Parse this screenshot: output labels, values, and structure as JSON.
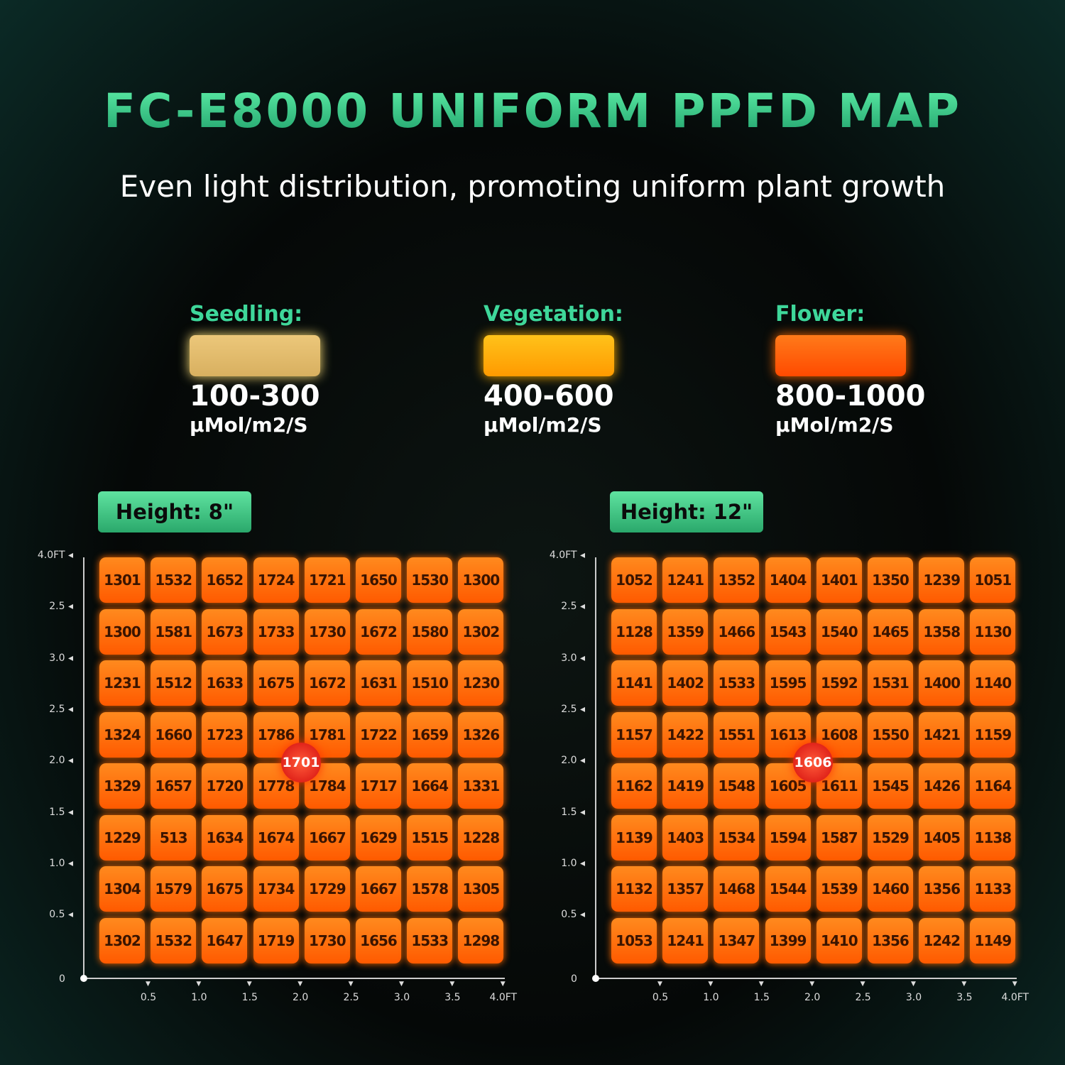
{
  "header": {
    "title": "FC-E8000 UNIFORM PPFD MAP",
    "subtitle": "Even light distribution, promoting uniform plant growth"
  },
  "legend": [
    {
      "label": "Seedling:",
      "range": "100-300",
      "unit": "µMol/m2/S"
    },
    {
      "label": "Vegetation:",
      "range": "400-600",
      "unit": "µMol/m2/S"
    },
    {
      "label": "Flower:",
      "range": "800-1000",
      "unit": "µMol/m2/S"
    }
  ],
  "maps": [
    {
      "height": "Height: 8\"",
      "center": "1701",
      "origin": "0",
      "y_axis": [
        "4.0FT",
        "2.5",
        "3.0",
        "2.5",
        "2.0",
        "1.5",
        "1.0",
        "0.5"
      ],
      "x_axis": [
        "0.5",
        "1.0",
        "1.5",
        "2.0",
        "2.5",
        "3.0",
        "3.5",
        "4.0FT"
      ],
      "rows": [
        [
          "1301",
          "1532",
          "1652",
          "1724",
          "1721",
          "1650",
          "1530",
          "1300"
        ],
        [
          "1300",
          "1581",
          "1673",
          "1733",
          "1730",
          "1672",
          "1580",
          "1302"
        ],
        [
          "1231",
          "1512",
          "1633",
          "1675",
          "1672",
          "1631",
          "1510",
          "1230"
        ],
        [
          "1324",
          "1660",
          "1723",
          "1786",
          "1781",
          "1722",
          "1659",
          "1326"
        ],
        [
          "1329",
          "1657",
          "1720",
          "1778",
          "1784",
          "1717",
          "1664",
          "1331"
        ],
        [
          "1229",
          "513",
          "1634",
          "1674",
          "1667",
          "1629",
          "1515",
          "1228"
        ],
        [
          "1304",
          "1579",
          "1675",
          "1734",
          "1729",
          "1667",
          "1578",
          "1305"
        ],
        [
          "1302",
          "1532",
          "1647",
          "1719",
          "1730",
          "1656",
          "1533",
          "1298"
        ]
      ]
    },
    {
      "height": "Height: 12\"",
      "center": "1606",
      "origin": "0",
      "y_axis": [
        "4.0FT",
        "2.5",
        "3.0",
        "2.5",
        "2.0",
        "1.5",
        "1.0",
        "0.5"
      ],
      "x_axis": [
        "0.5",
        "1.0",
        "1.5",
        "2.0",
        "2.5",
        "3.0",
        "3.5",
        "4.0FT"
      ],
      "rows": [
        [
          "1052",
          "1241",
          "1352",
          "1404",
          "1401",
          "1350",
          "1239",
          "1051"
        ],
        [
          "1128",
          "1359",
          "1466",
          "1543",
          "1540",
          "1465",
          "1358",
          "1130"
        ],
        [
          "1141",
          "1402",
          "1533",
          "1595",
          "1592",
          "1531",
          "1400",
          "1140"
        ],
        [
          "1157",
          "1422",
          "1551",
          "1613",
          "1608",
          "1550",
          "1421",
          "1159"
        ],
        [
          "1162",
          "1419",
          "1548",
          "1605",
          "1611",
          "1545",
          "1426",
          "1164"
        ],
        [
          "1139",
          "1403",
          "1534",
          "1594",
          "1587",
          "1529",
          "1405",
          "1138"
        ],
        [
          "1132",
          "1357",
          "1468",
          "1544",
          "1539",
          "1460",
          "1356",
          "1133"
        ],
        [
          "1053",
          "1241",
          "1347",
          "1399",
          "1410",
          "1356",
          "1242",
          "1149"
        ]
      ]
    }
  ]
}
